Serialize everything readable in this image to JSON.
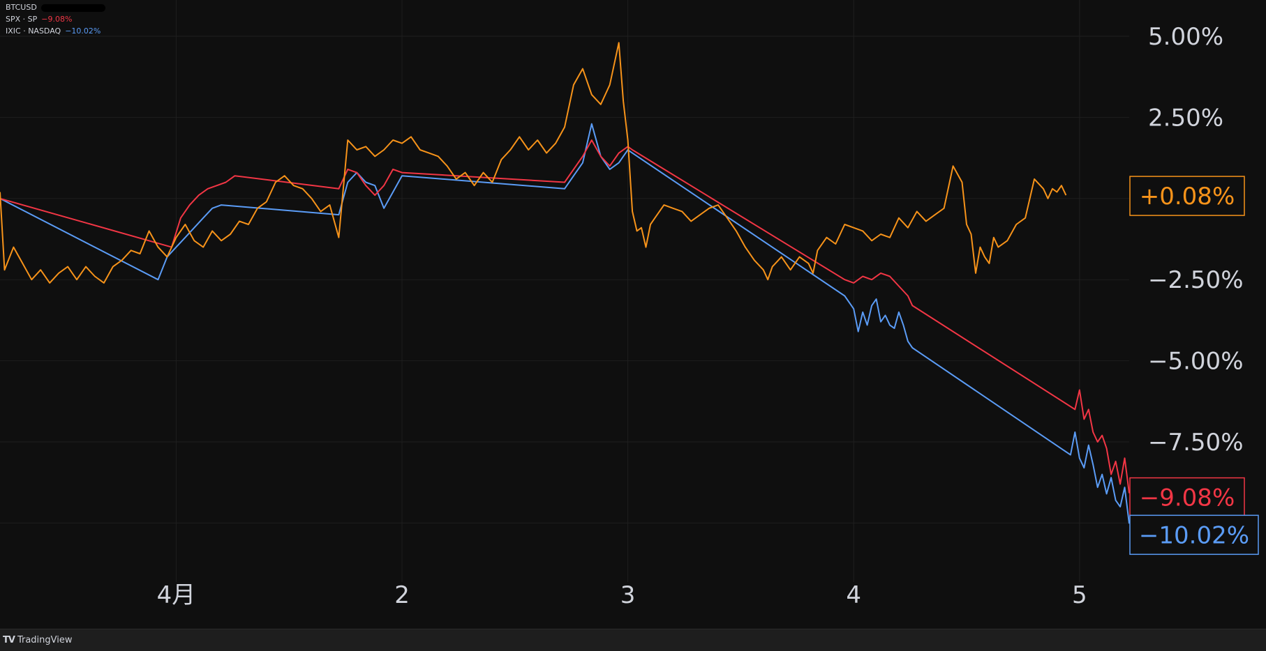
{
  "legend": [
    {
      "name": "BTCUSD",
      "value": "",
      "color": "#ffffff",
      "masked": true
    },
    {
      "name": "SPX · SP",
      "value": "−9.08%",
      "color": "#f23645"
    },
    {
      "name": "IXIC · NASDAQ",
      "value": "−10.02%",
      "color": "#5b9cf6"
    }
  ],
  "footer": {
    "brand": "TradingView",
    "icon_name": "tradingview-logo-icon"
  },
  "chart_data": {
    "type": "line",
    "y_axis": {
      "ticks": [
        "5.00%",
        "2.50%",
        "−2.50%",
        "−5.00%",
        "−7.50%"
      ],
      "tick_values": [
        5,
        2.5,
        -2.5,
        -5,
        -7.5
      ],
      "range": [
        -10.02,
        5.0
      ],
      "position": "right"
    },
    "x_axis": {
      "labels": [
        "4月",
        "2",
        "3",
        "4",
        "5"
      ],
      "label_values": [
        1.0,
        2.0,
        3.0,
        4.0,
        5.0
      ],
      "range": [
        0.22,
        5.22
      ]
    },
    "grid": true,
    "series": [
      {
        "name": "BTCUSD",
        "color": "#f7931a",
        "last_label": "+0.08%",
        "points": [
          [
            0.22,
            0.2
          ],
          [
            0.24,
            -2.2
          ],
          [
            0.28,
            -1.5
          ],
          [
            0.32,
            -2.0
          ],
          [
            0.36,
            -2.5
          ],
          [
            0.4,
            -2.2
          ],
          [
            0.44,
            -2.6
          ],
          [
            0.48,
            -2.3
          ],
          [
            0.52,
            -2.1
          ],
          [
            0.56,
            -2.5
          ],
          [
            0.6,
            -2.1
          ],
          [
            0.64,
            -2.4
          ],
          [
            0.68,
            -2.6
          ],
          [
            0.72,
            -2.1
          ],
          [
            0.76,
            -1.9
          ],
          [
            0.8,
            -1.6
          ],
          [
            0.84,
            -1.7
          ],
          [
            0.88,
            -1.0
          ],
          [
            0.92,
            -1.5
          ],
          [
            0.96,
            -1.8
          ],
          [
            1.0,
            -1.2
          ],
          [
            1.04,
            -0.8
          ],
          [
            1.08,
            -1.3
          ],
          [
            1.12,
            -1.5
          ],
          [
            1.16,
            -1.0
          ],
          [
            1.2,
            -1.3
          ],
          [
            1.24,
            -1.1
          ],
          [
            1.28,
            -0.7
          ],
          [
            1.32,
            -0.8
          ],
          [
            1.36,
            -0.3
          ],
          [
            1.4,
            -0.1
          ],
          [
            1.44,
            0.5
          ],
          [
            1.48,
            0.7
          ],
          [
            1.52,
            0.4
          ],
          [
            1.56,
            0.3
          ],
          [
            1.6,
            0.0
          ],
          [
            1.64,
            -0.4
          ],
          [
            1.68,
            -0.2
          ],
          [
            1.72,
            -1.2
          ],
          [
            1.76,
            1.8
          ],
          [
            1.8,
            1.5
          ],
          [
            1.84,
            1.6
          ],
          [
            1.88,
            1.3
          ],
          [
            1.92,
            1.5
          ],
          [
            1.96,
            1.8
          ],
          [
            2.0,
            1.7
          ],
          [
            2.04,
            1.9
          ],
          [
            2.08,
            1.5
          ],
          [
            2.12,
            1.4
          ],
          [
            2.16,
            1.3
          ],
          [
            2.2,
            1.0
          ],
          [
            2.24,
            0.6
          ],
          [
            2.28,
            0.8
          ],
          [
            2.32,
            0.4
          ],
          [
            2.36,
            0.8
          ],
          [
            2.4,
            0.5
          ],
          [
            2.44,
            1.2
          ],
          [
            2.48,
            1.5
          ],
          [
            2.52,
            1.9
          ],
          [
            2.56,
            1.5
          ],
          [
            2.6,
            1.8
          ],
          [
            2.64,
            1.4
          ],
          [
            2.68,
            1.7
          ],
          [
            2.72,
            2.2
          ],
          [
            2.76,
            3.5
          ],
          [
            2.8,
            4.0
          ],
          [
            2.84,
            3.2
          ],
          [
            2.88,
            2.9
          ],
          [
            2.92,
            3.5
          ],
          [
            2.96,
            4.8
          ],
          [
            2.98,
            3.0
          ],
          [
            3.0,
            1.8
          ],
          [
            3.02,
            -0.4
          ],
          [
            3.04,
            -1.0
          ],
          [
            3.06,
            -0.9
          ],
          [
            3.08,
            -1.5
          ],
          [
            3.1,
            -0.8
          ],
          [
            3.12,
            -0.6
          ],
          [
            3.16,
            -0.2
          ],
          [
            3.2,
            -0.3
          ],
          [
            3.24,
            -0.4
          ],
          [
            3.28,
            -0.7
          ],
          [
            3.32,
            -0.5
          ],
          [
            3.36,
            -0.3
          ],
          [
            3.4,
            -0.2
          ],
          [
            3.44,
            -0.6
          ],
          [
            3.48,
            -1.0
          ],
          [
            3.52,
            -1.5
          ],
          [
            3.56,
            -1.9
          ],
          [
            3.6,
            -2.2
          ],
          [
            3.62,
            -2.5
          ],
          [
            3.64,
            -2.1
          ],
          [
            3.68,
            -1.8
          ],
          [
            3.72,
            -2.2
          ],
          [
            3.76,
            -1.8
          ],
          [
            3.8,
            -2.0
          ],
          [
            3.82,
            -2.3
          ],
          [
            3.84,
            -1.6
          ],
          [
            3.88,
            -1.2
          ],
          [
            3.92,
            -1.4
          ],
          [
            3.96,
            -0.8
          ],
          [
            4.0,
            -0.9
          ],
          [
            4.04,
            -1.0
          ],
          [
            4.08,
            -1.3
          ],
          [
            4.12,
            -1.1
          ],
          [
            4.16,
            -1.2
          ],
          [
            4.2,
            -0.6
          ],
          [
            4.24,
            -0.9
          ],
          [
            4.28,
            -0.4
          ],
          [
            4.32,
            -0.7
          ],
          [
            4.36,
            -0.5
          ],
          [
            4.4,
            -0.3
          ],
          [
            4.44,
            1.0
          ],
          [
            4.48,
            0.5
          ],
          [
            4.5,
            -0.8
          ],
          [
            4.52,
            -1.1
          ],
          [
            4.54,
            -2.3
          ],
          [
            4.56,
            -1.5
          ],
          [
            4.58,
            -1.8
          ],
          [
            4.6,
            -2.0
          ],
          [
            4.62,
            -1.2
          ],
          [
            4.64,
            -1.5
          ],
          [
            4.68,
            -1.3
          ],
          [
            4.72,
            -0.8
          ],
          [
            4.76,
            -0.6
          ],
          [
            4.8,
            0.6
          ],
          [
            4.84,
            0.3
          ],
          [
            4.86,
            0.0
          ],
          [
            4.88,
            0.3
          ],
          [
            4.9,
            0.2
          ],
          [
            4.92,
            0.4
          ],
          [
            4.94,
            0.1
          ]
        ]
      },
      {
        "name": "SPX · SP",
        "color": "#f23645",
        "last_label": "−9.08%",
        "points": [
          [
            0.22,
            0.0
          ],
          [
            0.98,
            -1.5
          ],
          [
            1.02,
            -0.6
          ],
          [
            1.06,
            -0.2
          ],
          [
            1.1,
            0.1
          ],
          [
            1.14,
            0.3
          ],
          [
            1.18,
            0.4
          ],
          [
            1.22,
            0.5
          ],
          [
            1.26,
            0.7
          ],
          [
            1.72,
            0.3
          ],
          [
            1.76,
            0.9
          ],
          [
            1.8,
            0.8
          ],
          [
            1.84,
            0.4
          ],
          [
            1.88,
            0.1
          ],
          [
            1.92,
            0.4
          ],
          [
            1.96,
            0.9
          ],
          [
            2.0,
            0.8
          ],
          [
            2.72,
            0.5
          ],
          [
            2.76,
            0.9
          ],
          [
            2.8,
            1.3
          ],
          [
            2.84,
            1.8
          ],
          [
            2.88,
            1.3
          ],
          [
            2.92,
            1.0
          ],
          [
            2.96,
            1.4
          ],
          [
            3.0,
            1.6
          ],
          [
            3.02,
            1.5
          ],
          [
            3.96,
            -2.5
          ],
          [
            4.0,
            -2.6
          ],
          [
            4.04,
            -2.4
          ],
          [
            4.08,
            -2.5
          ],
          [
            4.12,
            -2.3
          ],
          [
            4.16,
            -2.4
          ],
          [
            4.2,
            -2.7
          ],
          [
            4.24,
            -3.0
          ],
          [
            4.26,
            -3.3
          ],
          [
            4.98,
            -6.5
          ],
          [
            5.0,
            -5.9
          ],
          [
            5.02,
            -6.8
          ],
          [
            5.04,
            -6.5
          ],
          [
            5.06,
            -7.2
          ],
          [
            5.08,
            -7.5
          ],
          [
            5.1,
            -7.3
          ],
          [
            5.12,
            -7.7
          ],
          [
            5.14,
            -8.5
          ],
          [
            5.16,
            -8.1
          ],
          [
            5.18,
            -8.8
          ],
          [
            5.2,
            -8.0
          ],
          [
            5.22,
            -9.08
          ]
        ]
      },
      {
        "name": "IXIC · NASDAQ",
        "color": "#5b9cf6",
        "last_label": "−10.02%",
        "points": [
          [
            0.22,
            0.0
          ],
          [
            0.92,
            -2.5
          ],
          [
            0.96,
            -1.8
          ],
          [
            1.0,
            -1.5
          ],
          [
            1.04,
            -1.2
          ],
          [
            1.08,
            -0.9
          ],
          [
            1.12,
            -0.6
          ],
          [
            1.16,
            -0.3
          ],
          [
            1.2,
            -0.2
          ],
          [
            1.72,
            -0.5
          ],
          [
            1.76,
            0.5
          ],
          [
            1.8,
            0.8
          ],
          [
            1.84,
            0.5
          ],
          [
            1.88,
            0.4
          ],
          [
            1.92,
            -0.3
          ],
          [
            1.96,
            0.2
          ],
          [
            2.0,
            0.7
          ],
          [
            2.72,
            0.3
          ],
          [
            2.76,
            0.7
          ],
          [
            2.8,
            1.1
          ],
          [
            2.84,
            2.3
          ],
          [
            2.88,
            1.3
          ],
          [
            2.92,
            0.9
          ],
          [
            2.96,
            1.1
          ],
          [
            3.0,
            1.5
          ],
          [
            3.02,
            1.4
          ],
          [
            3.96,
            -3.0
          ],
          [
            4.0,
            -3.4
          ],
          [
            4.02,
            -4.1
          ],
          [
            4.04,
            -3.5
          ],
          [
            4.06,
            -3.9
          ],
          [
            4.08,
            -3.3
          ],
          [
            4.1,
            -3.1
          ],
          [
            4.12,
            -3.8
          ],
          [
            4.14,
            -3.6
          ],
          [
            4.16,
            -3.9
          ],
          [
            4.18,
            -4.0
          ],
          [
            4.2,
            -3.5
          ],
          [
            4.22,
            -3.9
          ],
          [
            4.24,
            -4.4
          ],
          [
            4.26,
            -4.6
          ],
          [
            4.96,
            -7.9
          ],
          [
            4.98,
            -7.2
          ],
          [
            5.0,
            -8.0
          ],
          [
            5.02,
            -8.3
          ],
          [
            5.04,
            -7.6
          ],
          [
            5.06,
            -8.2
          ],
          [
            5.08,
            -8.9
          ],
          [
            5.1,
            -8.5
          ],
          [
            5.12,
            -9.1
          ],
          [
            5.14,
            -8.6
          ],
          [
            5.16,
            -9.3
          ],
          [
            5.18,
            -9.5
          ],
          [
            5.2,
            -8.9
          ],
          [
            5.22,
            -10.02
          ]
        ]
      }
    ]
  }
}
